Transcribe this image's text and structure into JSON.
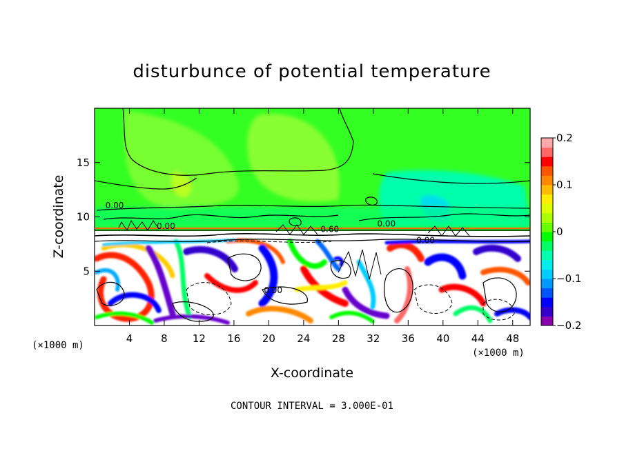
{
  "chart_data": {
    "type": "heatmap",
    "title": "disturbunce of potential temperature",
    "xlabel": "X-coordinate",
    "ylabel": "Z-coordinate",
    "x_unit": "(×1000 m)",
    "xlim": [
      0,
      50
    ],
    "ylim": [
      0,
      20
    ],
    "x_ticks": [
      4,
      8,
      12,
      16,
      20,
      24,
      28,
      32,
      36,
      40,
      44,
      48
    ],
    "y_ticks": [
      5,
      10,
      15
    ],
    "colorbar": {
      "range": [
        -0.2,
        0.2
      ],
      "ticks": [
        {
          "value": 0.2,
          "label": "0.2"
        },
        {
          "value": 0.1,
          "label": "0.1"
        },
        {
          "value": 0.0,
          "label": "0"
        },
        {
          "value": -0.1,
          "label": "−0.1"
        },
        {
          "value": -0.2,
          "label": "−0.2"
        }
      ],
      "colors": [
        "#8a00b0",
        "#3300cc",
        "#0000ff",
        "#0055ff",
        "#0099ff",
        "#00ccff",
        "#00eeee",
        "#00ffb0",
        "#00ff66",
        "#00ff00",
        "#66ff00",
        "#aaff00",
        "#ddff00",
        "#ffee00",
        "#ffbb00",
        "#ff8800",
        "#ff5500",
        "#ff0000",
        "#ff6666",
        "#ffaaaa"
      ]
    },
    "contour_labels": [
      {
        "text": "0.00",
        "x": 2.3,
        "y": 10.8
      },
      {
        "text": "0.00",
        "x": 8.2,
        "y": 8.9
      },
      {
        "text": "0.60",
        "x": 27.0,
        "y": 8.6
      },
      {
        "text": "0.00",
        "x": 33.5,
        "y": 9.1
      },
      {
        "text": "0.00",
        "x": 38.0,
        "y": 7.6
      },
      {
        "text": "0.00",
        "x": 20.5,
        "y": 3.0
      }
    ],
    "contour_interval": "CONTOUR INTERVAL = 3.000E-01"
  }
}
